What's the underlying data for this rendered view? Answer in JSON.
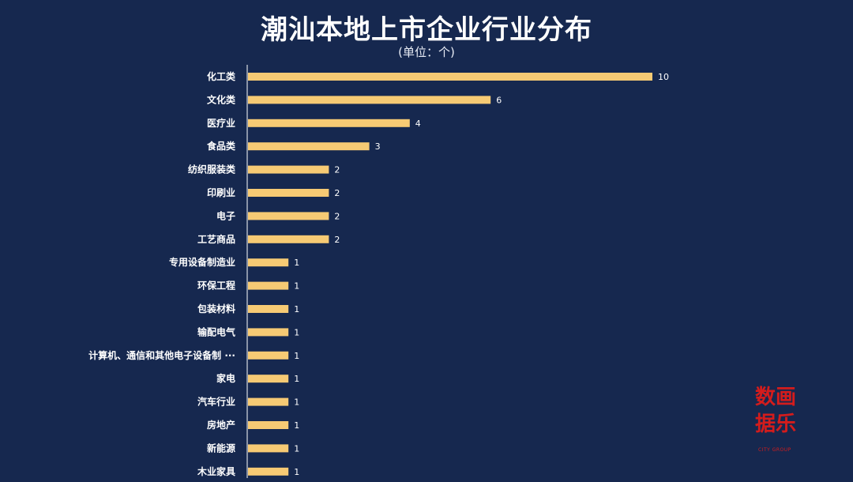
{
  "title": "潮汕本地上市企业行业分布",
  "subtitle": "(单位：个)",
  "colors": {
    "background": "#16284f",
    "bar": "#f6ca74",
    "text": "#ffffff",
    "logo": "#d41c1c"
  },
  "logo": {
    "line1": "数画",
    "line2": "据乐",
    "line3": "CITY GROUP"
  },
  "chart_data": {
    "type": "bar",
    "orientation": "horizontal",
    "categories": [
      "化工类",
      "文化类",
      "医疗业",
      "食品类",
      "纺织服装类",
      "印刷业",
      "电子",
      "工艺商品",
      "专用设备制造业",
      "环保工程",
      "包装材料",
      "输配电气",
      "计算机、通信和其他电子设备制 ···",
      "家电",
      "汽车行业",
      "房地产",
      "新能源",
      "木业家具"
    ],
    "values": [
      10,
      6,
      4,
      3,
      2,
      2,
      2,
      2,
      1,
      1,
      1,
      1,
      1,
      1,
      1,
      1,
      1,
      1
    ],
    "xlim": [
      0,
      10
    ],
    "data_labels": true,
    "grid": false
  }
}
